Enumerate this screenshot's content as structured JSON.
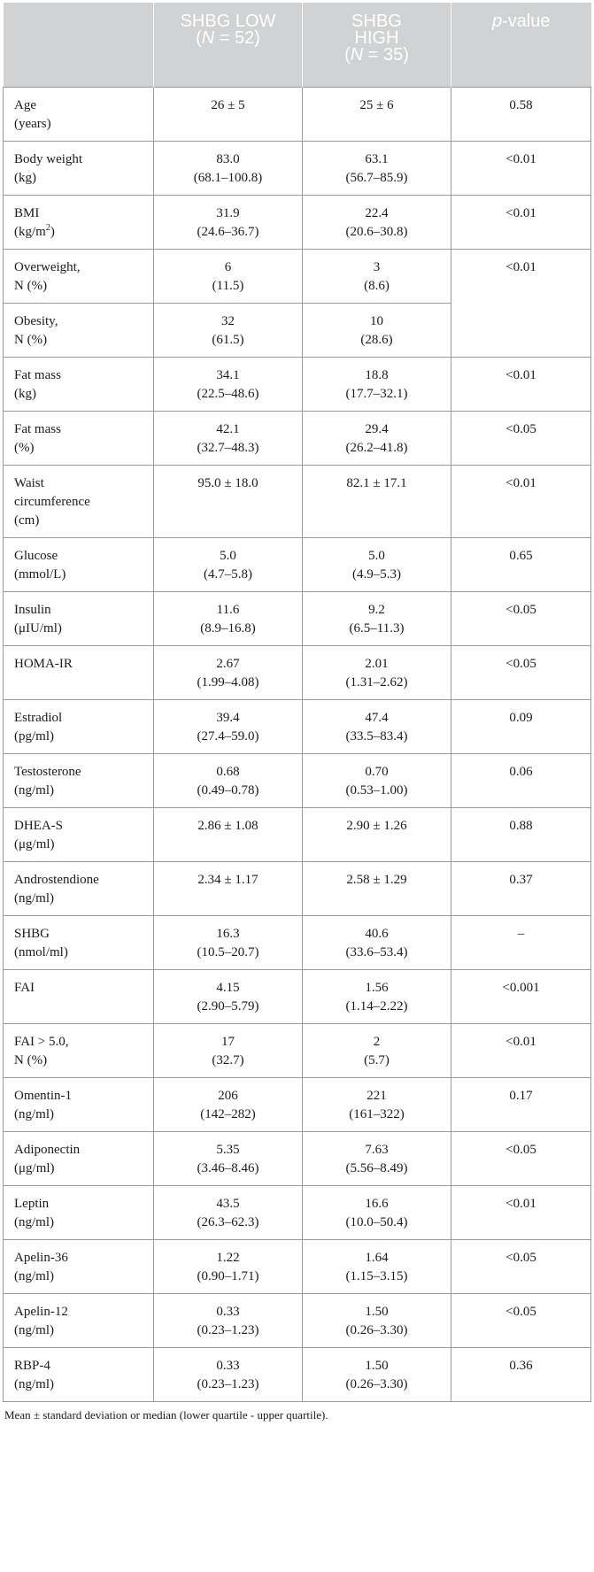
{
  "header": {
    "col1": "",
    "col2_line1": "SHBG LOW",
    "col2_line2_n": "N",
    "col2_line2_rest": " = 52)",
    "col3_line1": "SHBG",
    "col3_line2": "HIGH",
    "col3_line3_n": "N",
    "col3_line3_rest": " = 35)",
    "col4_italic": "p",
    "col4_rest": "-value"
  },
  "rows": [
    {
      "l1": "Age",
      "l2": "(years)",
      "low1": "26 ± 5",
      "low2": "",
      "high1": "25 ± 6",
      "high2": "",
      "p": "0.58"
    },
    {
      "l1": "Body weight",
      "l2": "(kg)",
      "low1": "83.0",
      "low2": "(68.1–100.8)",
      "high1": "63.1",
      "high2": "(56.7–85.9)",
      "p": "<0.01"
    },
    {
      "l1": "BMI",
      "l2": "(kg/m",
      "l2sup": "2",
      "l2end": ")",
      "low1": "31.9",
      "low2": "(24.6–36.7)",
      "high1": "22.4",
      "high2": "(20.6–30.8)",
      "p": "<0.01"
    },
    {
      "l1": "Overweight,",
      "l2": "N (%)",
      "low1": "6",
      "low2": "(11.5)",
      "high1": "3",
      "high2": "(8.6)",
      "p": "<0.01"
    },
    {
      "l1": "Obesity,",
      "l2": "N (%)",
      "low1": "32",
      "low2": "(61.5)",
      "high1": "10",
      "high2": "(28.6)"
    },
    {
      "l1": "Fat mass",
      "l2": "(kg)",
      "low1": "34.1",
      "low2": "(22.5–48.6)",
      "high1": "18.8",
      "high2": "(17.7–32.1)",
      "p": "<0.01"
    },
    {
      "l1": "Fat mass",
      "l2": "(%)",
      "low1": "42.1",
      "low2": "(32.7–48.3)",
      "high1": "29.4",
      "high2": "(26.2–41.8)",
      "p": "<0.05"
    },
    {
      "l1": "Waist",
      "l2": "circumference",
      "l3": "(cm)",
      "low1": "95.0 ± 18.0",
      "low2": "",
      "high1": "82.1 ± 17.1",
      "high2": "",
      "p": "<0.01"
    },
    {
      "l1": "Glucose",
      "l2": "(mmol/L)",
      "low1": "5.0",
      "low2": "(4.7–5.8)",
      "high1": "5.0",
      "high2": "(4.9–5.3)",
      "p": "0.65"
    },
    {
      "l1": "Insulin",
      "l2": "(μIU/ml)",
      "low1": "11.6",
      "low2": "(8.9–16.8)",
      "high1": "9.2",
      "high2": "(6.5–11.3)",
      "p": "<0.05"
    },
    {
      "l1": "HOMA-IR",
      "l2": "",
      "low1": "2.67",
      "low2": "(1.99–4.08)",
      "high1": "2.01",
      "high2": "(1.31–2.62)",
      "p": "<0.05"
    },
    {
      "l1": "Estradiol",
      "l2": "(pg/ml)",
      "low1": "39.4",
      "low2": "(27.4–59.0)",
      "high1": "47.4",
      "high2": "(33.5–83.4)",
      "p": "0.09"
    },
    {
      "l1": "Testosterone",
      "l2": "(ng/ml)",
      "low1": "0.68",
      "low2": "(0.49–0.78)",
      "high1": "0.70",
      "high2": "(0.53–1.00)",
      "p": "0.06"
    },
    {
      "l1": "DHEA-S",
      "l2": "(μg/ml)",
      "low1": "2.86 ± 1.08",
      "low2": "",
      "high1": "2.90 ± 1.26",
      "high2": "",
      "p": "0.88"
    },
    {
      "l1": "Androstendione",
      "l2": "(ng/ml)",
      "low1": "2.34 ± 1.17",
      "low2": "",
      "high1": "2.58 ± 1.29",
      "high2": "",
      "p": "0.37"
    },
    {
      "l1": "SHBG",
      "l2": "(nmol/ml)",
      "low1": "16.3",
      "low2": "(10.5–20.7)",
      "high1": "40.6",
      "high2": "(33.6–53.4)",
      "p": "–"
    },
    {
      "l1": "FAI",
      "l2": "",
      "low1": "4.15",
      "low2": "(2.90–5.79)",
      "high1": "1.56",
      "high2": "(1.14–2.22)",
      "p": "<0.001"
    },
    {
      "l1": "FAI > 5.0,",
      "l2": "N (%)",
      "low1": "17",
      "low2": "(32.7)",
      "high1": "2",
      "high2": "(5.7)",
      "p": "<0.01"
    },
    {
      "l1": "Omentin-1",
      "l2": "(ng/ml)",
      "low1": "206",
      "low2": "(142–282)",
      "high1": "221",
      "high2": "(161–322)",
      "p": "0.17"
    },
    {
      "l1": "Adiponectin",
      "l2": "(μg/ml)",
      "low1": "5.35",
      "low2": "(3.46–8.46)",
      "high1": "7.63",
      "high2": "(5.56–8.49)",
      "p": "<0.05"
    },
    {
      "l1": "Leptin",
      "l2": "(ng/ml)",
      "low1": "43.5",
      "low2": "(26.3–62.3)",
      "high1": "16.6",
      "high2": "(10.0–50.4)",
      "p": "<0.01"
    },
    {
      "l1": "Apelin-36",
      "l2": "(ng/ml)",
      "low1": "1.22",
      "low2": "(0.90–1.71)",
      "high1": "1.64",
      "high2": "(1.15–3.15)",
      "p": "<0.05"
    },
    {
      "l1": "Apelin-12",
      "l2": "(ng/ml)",
      "low1": "0.33",
      "low2": "(0.23–1.23)",
      "high1": "1.50",
      "high2": "(0.26–3.30)",
      "p": "<0.05"
    },
    {
      "l1": "RBP-4",
      "l2": "(ng/ml)",
      "low1": "0.33",
      "low2": "(0.23–1.23)",
      "high1": "1.50",
      "high2": "(0.26–3.30)",
      "p": "0.36"
    }
  ],
  "footnote": "Mean ± standard deviation or median (lower quartile - upper quartile)."
}
